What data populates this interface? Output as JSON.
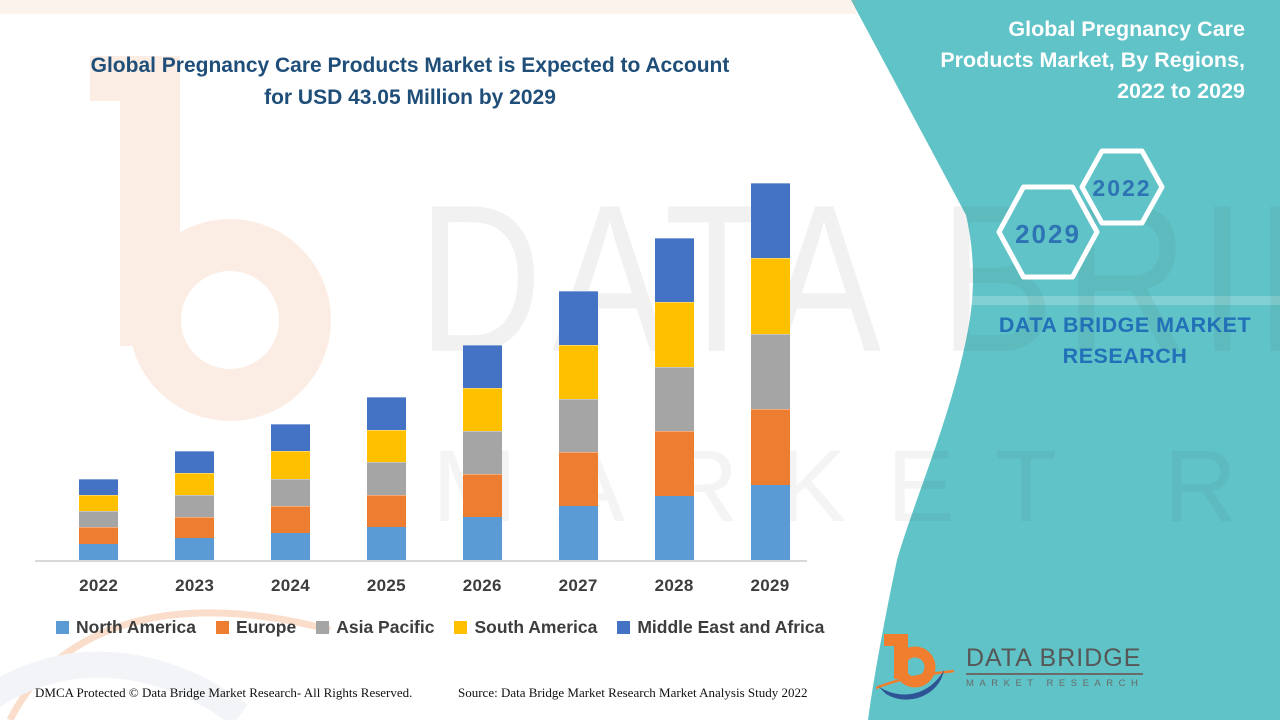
{
  "left_panel": {
    "title_line1": "Global Pregnancy Care Products Market is Expected to Account",
    "title_line2": "for USD 43.05 Million by 2029"
  },
  "right_panel": {
    "title_lines": [
      "Global Pregnancy Care",
      "Products Market, By Regions,",
      "2022 to 2029"
    ],
    "hexagons": [
      {
        "label": "2029"
      },
      {
        "label": "2022"
      }
    ],
    "brand_line1": "DATA BRIDGE MARKET",
    "brand_line2": "RESEARCH",
    "panel_color": "#5FC3C7"
  },
  "watermark": {
    "line1": "DATA BRIDGE",
    "line2": "MARKET RESEARCH"
  },
  "logo": {
    "title": "DATA BRIDGE",
    "subtitle": "MARKET RESEARCH"
  },
  "footer": {
    "dmca": "DMCA Protected © Data Bridge Market Research- All Rights Reserved.",
    "source": "Source: Data Bridge Market Research Market Analysis Study 2022"
  },
  "chart_data": {
    "type": "bar",
    "stacked": true,
    "title": "Global Pregnancy Care Products Market is Expected to Account for USD 43.05 Million by 2029",
    "unit": "USD Million",
    "categories": [
      "2022",
      "2023",
      "2024",
      "2025",
      "2026",
      "2027",
      "2028",
      "2029"
    ],
    "series": [
      {
        "name": "North America",
        "color": "#5B9BD5",
        "values": [
          1.86,
          2.48,
          3.1,
          3.72,
          4.9,
          6.14,
          7.36,
          8.61
        ]
      },
      {
        "name": "Europe",
        "color": "#ED7D31",
        "values": [
          1.86,
          2.48,
          3.1,
          3.72,
          4.9,
          6.14,
          7.36,
          8.61
        ]
      },
      {
        "name": "Asia Pacific",
        "color": "#A5A5A5",
        "values": [
          1.86,
          2.48,
          3.1,
          3.72,
          4.9,
          6.14,
          7.36,
          8.61
        ]
      },
      {
        "name": "South America",
        "color": "#FFC000",
        "values": [
          1.86,
          2.48,
          3.1,
          3.72,
          4.9,
          6.14,
          7.36,
          8.61
        ]
      },
      {
        "name": "Middle East and Africa",
        "color": "#4472C4",
        "values": [
          1.86,
          2.48,
          3.1,
          3.72,
          4.9,
          6.14,
          7.36,
          8.61
        ]
      }
    ],
    "totals": [
      9.3,
      12.4,
      15.5,
      18.6,
      24.5,
      30.7,
      36.8,
      43.05
    ],
    "ylim": [
      0,
      43.05
    ],
    "grid": false,
    "legend_position": "bottom"
  }
}
